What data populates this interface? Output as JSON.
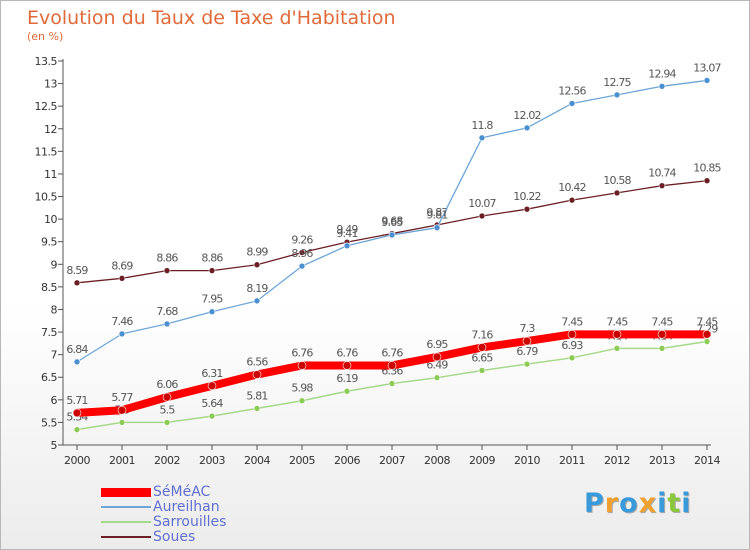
{
  "title": "Evolution du Taux de Taxe d'Habitation",
  "subtitle": "(en %)",
  "logo": {
    "letters": [
      "P",
      "r",
      "o",
      "x",
      "i",
      "t",
      "i"
    ],
    "colors": [
      "#3a9ad9",
      "#f0a030",
      "#3a9ad9",
      "#f0a030",
      "#3a9ad9",
      "#8cc63f",
      "#3a9ad9"
    ]
  },
  "chart_data": {
    "type": "line",
    "title": "Evolution du Taux de Taxe d'Habitation",
    "ylabel": "(en %)",
    "ylim": [
      5,
      13.5
    ],
    "ystep": 0.5,
    "grid": false,
    "legend_position": "bottom-left",
    "x": [
      "2000",
      "2001",
      "2002",
      "2003",
      "2004",
      "2005",
      "2006",
      "2007",
      "2008",
      "2009",
      "2010",
      "2011",
      "2012",
      "2013",
      "2014"
    ],
    "series": [
      {
        "name": "Soues",
        "color": "#6b1f24",
        "marker": "#6b1f24",
        "width": 1.3,
        "values": [
          8.59,
          8.69,
          8.86,
          8.86,
          8.99,
          9.26,
          9.49,
          9.68,
          9.87,
          10.07,
          10.22,
          10.42,
          10.58,
          10.74,
          10.85
        ],
        "labels": [
          "8.59",
          "8.69",
          "8.86",
          "8.86",
          "8.99",
          "9.26",
          "9.49",
          "9.68",
          "9.87",
          "10.07",
          "10.22",
          "10.42",
          "10.58",
          "10.74",
          "10.85"
        ]
      },
      {
        "name": "Aureilhan",
        "color": "#6ea6d6",
        "marker": "#4a8fd0",
        "width": 1.3,
        "values": [
          6.84,
          7.46,
          7.68,
          7.95,
          8.19,
          8.96,
          9.41,
          9.65,
          9.81,
          11.8,
          12.02,
          12.56,
          12.75,
          12.94,
          13.07
        ],
        "labels": [
          "6.84",
          "7.46",
          "7.68",
          "7.95",
          "8.19",
          "8.96",
          "9.41",
          "9.65",
          "9.81",
          "11.8",
          "12.02",
          "12.56",
          "12.75",
          "12.94",
          "13.07"
        ]
      },
      {
        "name": "Sarrouilles",
        "color": "#a6d88a",
        "marker": "#8ccc55",
        "width": 1.5,
        "values": [
          5.34,
          5.5,
          5.5,
          5.64,
          5.81,
          5.98,
          6.19,
          6.36,
          6.49,
          6.65,
          6.79,
          6.93,
          7.14,
          7.14,
          7.29
        ],
        "labels": [
          "5.34",
          "5.5",
          "5.5",
          "5.64",
          "5.81",
          "5.98",
          "6.19",
          "6.36",
          "6.49",
          "6.65",
          "6.79",
          "6.93",
          "7.14",
          "7.14",
          "7.29"
        ]
      },
      {
        "name": "SéMéAC",
        "color": "#ff0000",
        "marker": "#cc0000",
        "width": 8,
        "values": [
          5.71,
          5.77,
          6.06,
          6.31,
          6.56,
          6.76,
          6.76,
          6.76,
          6.95,
          7.16,
          7.3,
          7.45,
          7.45,
          7.45,
          7.45
        ],
        "labels": [
          "5.71",
          "5.77",
          "6.06",
          "6.31",
          "6.56",
          "6.76",
          "6.76",
          "6.76",
          "6.95",
          "7.16",
          "7.3",
          "7.45",
          "7.45",
          "7.45",
          "7.45"
        ]
      }
    ],
    "legend_order": [
      "SéMéAC",
      "Aureilhan",
      "Sarrouilles",
      "Soues"
    ]
  }
}
